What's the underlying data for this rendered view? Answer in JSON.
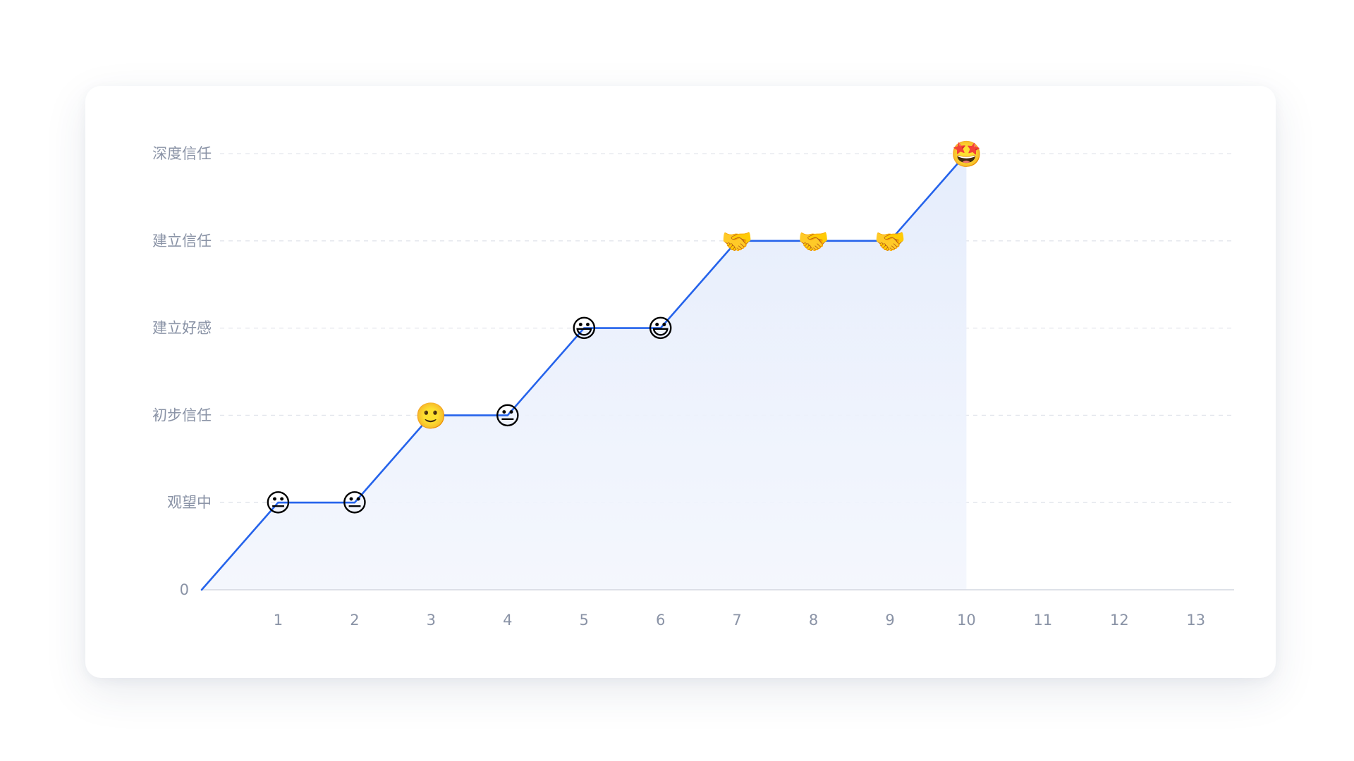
{
  "chart_data": {
    "type": "line",
    "title": "",
    "xlabel": "",
    "ylabel": "",
    "x_ticks": [
      "1",
      "2",
      "3",
      "4",
      "5",
      "6",
      "7",
      "8",
      "9",
      "10",
      "11",
      "12",
      "13"
    ],
    "xlim": [
      0,
      13.5
    ],
    "y_levels": [
      "0",
      "观望中",
      "初步信任",
      "建立好感",
      "建立信任",
      "深度信任"
    ],
    "ylim": [
      0,
      5
    ],
    "grid": "horizontal-dashed",
    "line_color": "#2563eb",
    "area_fill": true,
    "area_color": "#dfe8fb",
    "series": [
      {
        "x": [
          0,
          1,
          2,
          3,
          4,
          5,
          6,
          7,
          8,
          9,
          10
        ],
        "y": [
          0,
          1,
          1,
          2,
          2,
          3,
          3,
          4,
          4,
          4,
          5
        ]
      }
    ],
    "markers": [
      {
        "x": 1,
        "y": 1,
        "emoji": "😐",
        "icon": "neutral-face-icon"
      },
      {
        "x": 2,
        "y": 1,
        "emoji": "😐",
        "icon": "neutral-face-icon"
      },
      {
        "x": 3,
        "y": 2,
        "emoji": "🙂",
        "icon": "slightly-smiling-face-icon"
      },
      {
        "x": 4,
        "y": 2,
        "emoji": "😐",
        "icon": "neutral-face-icon"
      },
      {
        "x": 5,
        "y": 3,
        "emoji": "😃",
        "icon": "grinning-face-icon"
      },
      {
        "x": 6,
        "y": 3,
        "emoji": "😃",
        "icon": "grinning-face-icon"
      },
      {
        "x": 7,
        "y": 4,
        "emoji": "🤝",
        "icon": "handshake-icon"
      },
      {
        "x": 8,
        "y": 4,
        "emoji": "🤝",
        "icon": "handshake-icon"
      },
      {
        "x": 9,
        "y": 4,
        "emoji": "🤝",
        "icon": "handshake-icon"
      },
      {
        "x": 10,
        "y": 5,
        "emoji": "🤩",
        "icon": "star-struck-face-icon"
      }
    ]
  }
}
